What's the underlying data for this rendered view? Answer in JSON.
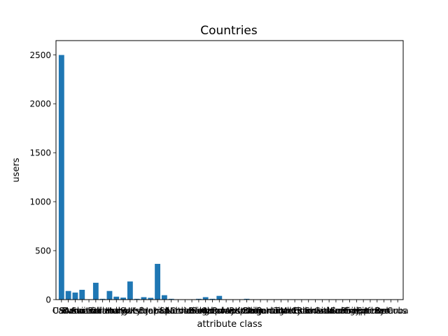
{
  "chart_data": {
    "type": "bar",
    "title": "Countries",
    "xlabel": "attribute class",
    "ylabel": "users",
    "ylim": [
      0,
      2645
    ],
    "yticks": [
      0,
      500,
      1000,
      1500,
      2000,
      2500
    ],
    "bar_color": "#1f77b4",
    "categories": [
      "USA",
      "Canada",
      "Russia",
      "Denmark",
      "Australia",
      "Switzerland",
      "Finland",
      "Germany",
      "Italy",
      "Hungary",
      "UK",
      "Sweden",
      "Israel",
      "Brazil",
      "Japan",
      "India",
      "Spain",
      "Latvia",
      "Croatia",
      "Netherlands",
      "Ireland",
      "Belgium",
      "Singapore",
      "Norway",
      "Poland",
      "Czech Republic",
      "Austria",
      "Korea",
      "China",
      "Bulgaria",
      "Argentina",
      "Portugal",
      "Iceland",
      "Turkey",
      "Mexico",
      "Chile",
      "Estonia",
      "Romania",
      "Slovakia",
      "Greece",
      "Lithuania",
      "Ukraine",
      "Colombia",
      "Egypt",
      "Philippines",
      "Serbia",
      "Kenya",
      "Peru",
      "Belarus",
      "Cuba"
    ],
    "values": [
      2498,
      88,
      72,
      100,
      0,
      172,
      8,
      88,
      30,
      20,
      185,
      8,
      25,
      18,
      365,
      45,
      8,
      0,
      0,
      0,
      8,
      25,
      8,
      38,
      0,
      0,
      0,
      8,
      0,
      0,
      0,
      0,
      0,
      0,
      0,
      0,
      0,
      0,
      0,
      0,
      0,
      0,
      0,
      0,
      0,
      0,
      0,
      0,
      0,
      0
    ]
  }
}
